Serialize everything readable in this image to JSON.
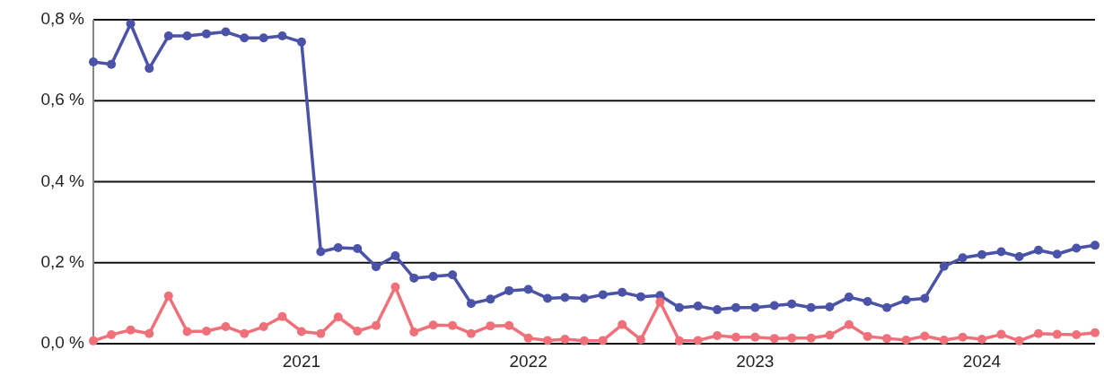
{
  "chart_data": {
    "type": "line",
    "marker": "circle",
    "grid": "y",
    "x": [
      "2020-02",
      "2020-03",
      "2020-04",
      "2020-05",
      "2020-06",
      "2020-07",
      "2020-08",
      "2020-09",
      "2020-10",
      "2020-11",
      "2020-12",
      "2021-01",
      "2021-02",
      "2021-03",
      "2021-04",
      "2021-05",
      "2021-06",
      "2021-07",
      "2021-08",
      "2021-09",
      "2021-10",
      "2021-11",
      "2021-12",
      "2022-01",
      "2022-02",
      "2022-03",
      "2022-04",
      "2022-05",
      "2022-06",
      "2022-07",
      "2022-08",
      "2022-09",
      "2022-10",
      "2022-11",
      "2022-12",
      "2023-01",
      "2023-02",
      "2023-03",
      "2023-04",
      "2023-05",
      "2023-06",
      "2023-07",
      "2023-08",
      "2023-09",
      "2023-10",
      "2023-11",
      "2023-12",
      "2024-01",
      "2024-02",
      "2024-03",
      "2024-04",
      "2024-05",
      "2024-06",
      "2024-07"
    ],
    "xlim": [
      "2020-02",
      "2024-07"
    ],
    "xticks": [
      {
        "value": "2021-01",
        "label": "2021"
      },
      {
        "value": "2022-01",
        "label": "2022"
      },
      {
        "value": "2023-01",
        "label": "2023"
      },
      {
        "value": "2024-01",
        "label": "2024"
      }
    ],
    "ylim": [
      0,
      0.8
    ],
    "yticks": [
      {
        "value": 0,
        "label": "0,0 %"
      },
      {
        "value": 0.2,
        "label": "0,2 %"
      },
      {
        "value": 0.4,
        "label": "0,4 %"
      },
      {
        "value": 0.6,
        "label": "0,6 %"
      },
      {
        "value": 0.8,
        "label": "0,8 %"
      }
    ],
    "series": [
      {
        "color": "#4b53a8",
        "values": [
          0.696,
          0.69,
          0.79,
          0.68,
          0.76,
          0.76,
          0.765,
          0.77,
          0.755,
          0.755,
          0.76,
          0.745,
          0.227,
          0.237,
          0.235,
          0.19,
          0.217,
          0.162,
          0.166,
          0.17,
          0.099,
          0.11,
          0.131,
          0.134,
          0.112,
          0.114,
          0.112,
          0.121,
          0.127,
          0.116,
          0.119,
          0.089,
          0.093,
          0.084,
          0.089,
          0.089,
          0.094,
          0.098,
          0.089,
          0.091,
          0.115,
          0.104,
          0.089,
          0.108,
          0.112,
          0.191,
          0.212,
          0.22,
          0.227,
          0.215,
          0.231,
          0.221,
          0.236,
          0.243
        ]
      },
      {
        "color": "#f0707a",
        "values": [
          0.007,
          0.022,
          0.034,
          0.025,
          0.118,
          0.03,
          0.031,
          0.042,
          0.025,
          0.042,
          0.067,
          0.03,
          0.025,
          0.066,
          0.031,
          0.045,
          0.14,
          0.029,
          0.046,
          0.045,
          0.025,
          0.044,
          0.045,
          0.014,
          0.008,
          0.011,
          0.007,
          0.008,
          0.047,
          0.01,
          0.103,
          0.007,
          0.008,
          0.02,
          0.016,
          0.016,
          0.013,
          0.014,
          0.014,
          0.021,
          0.047,
          0.018,
          0.013,
          0.009,
          0.019,
          0.009,
          0.016,
          0.011,
          0.023,
          0.007,
          0.025,
          0.023,
          0.022,
          0.027
        ]
      }
    ]
  }
}
